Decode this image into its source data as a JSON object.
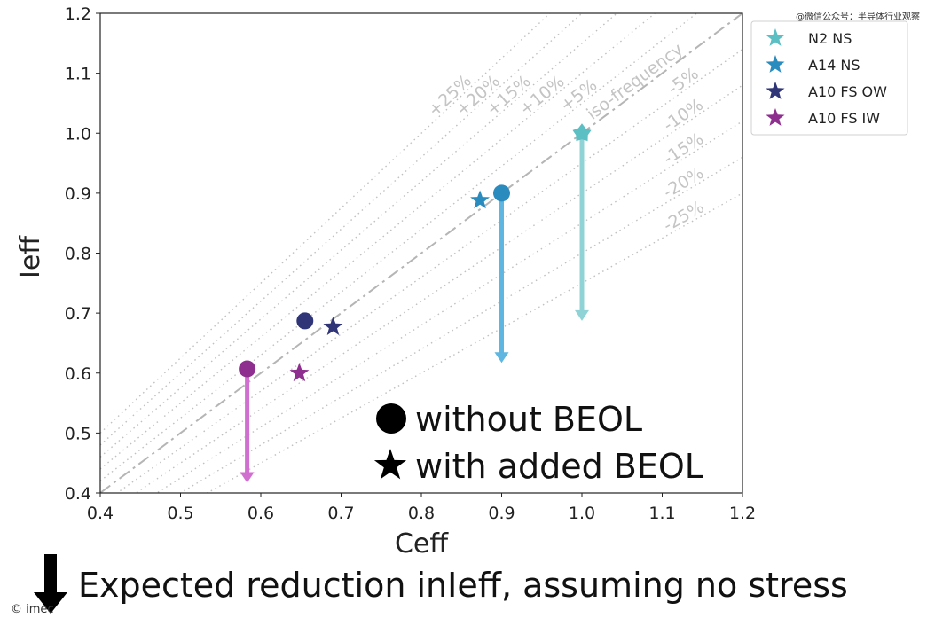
{
  "watermark": "@微信公众号：半导体行业观察",
  "credit": "© imec",
  "footer": {
    "text": "Expected reduction in",
    "emphasis": "Ieff",
    "rest": ", assuming no stress"
  },
  "markers_legend": {
    "circle": "without BEOL",
    "star": "with added BEOL"
  },
  "colors": {
    "N2 NS": "#5bbfc4",
    "A14 NS": "#2a8bbf",
    "A10 FS OW": "#2f3577",
    "A10 FS IW": "#8e2e8f",
    "arrow_n2": "#8fd3d6",
    "arrow_a14": "#5fb6e0",
    "arrow_a10iw": "#d06fd0",
    "guide": "#c0c0c0",
    "iso": "#b5b5b5"
  },
  "chart_data": {
    "type": "scatter",
    "xlabel": "Ceff",
    "ylabel": "Ieff",
    "xlim": [
      0.4,
      1.2
    ],
    "ylim": [
      0.4,
      1.2
    ],
    "xticks": [
      "0.4",
      "0.5",
      "0.6",
      "0.7",
      "0.8",
      "0.9",
      "1.0",
      "1.1",
      "1.2"
    ],
    "yticks": [
      "0.4",
      "0.5",
      "0.6",
      "0.7",
      "0.8",
      "0.9",
      "1.0",
      "1.1",
      "1.2"
    ],
    "legend_position": "top-right",
    "grid": false,
    "series": [
      {
        "name": "N2 NS",
        "without_beol": {
          "x": 1.0,
          "y": 1.0
        },
        "with_beol": {
          "x": 1.0,
          "y": 1.0
        },
        "expected_reduction_to": 0.69
      },
      {
        "name": "A14 NS",
        "without_beol": {
          "x": 0.9,
          "y": 0.9
        },
        "with_beol": {
          "x": 0.873,
          "y": 0.888
        },
        "expected_reduction_to": 0.62
      },
      {
        "name": "A10 FS OW",
        "without_beol": {
          "x": 0.655,
          "y": 0.687
        },
        "with_beol": {
          "x": 0.69,
          "y": 0.677
        }
      },
      {
        "name": "A10 FS IW",
        "without_beol": {
          "x": 0.583,
          "y": 0.607
        },
        "with_beol": {
          "x": 0.648,
          "y": 0.6
        },
        "expected_reduction_to": 0.42
      }
    ],
    "iso_line": {
      "label": "iso-frequency",
      "slope": 1.0
    },
    "guide_lines": [
      {
        "label": "+25%",
        "slope": 1.25
      },
      {
        "label": "+20%",
        "slope": 1.2
      },
      {
        "label": "+15%",
        "slope": 1.15
      },
      {
        "label": "+10%",
        "slope": 1.1
      },
      {
        "label": "+5%",
        "slope": 1.05
      },
      {
        "label": "-5%",
        "slope": 0.95
      },
      {
        "label": "-10%",
        "slope": 0.9
      },
      {
        "label": "-15%",
        "slope": 0.85
      },
      {
        "label": "-20%",
        "slope": 0.8
      },
      {
        "label": "-25%",
        "slope": 0.75
      }
    ]
  }
}
